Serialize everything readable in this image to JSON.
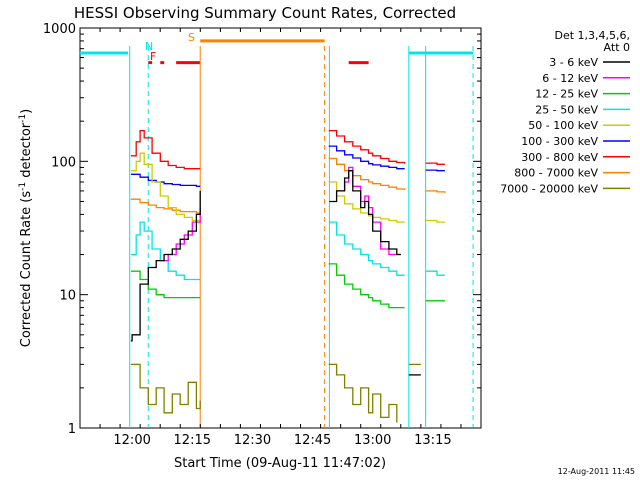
{
  "chart_data": {
    "type": "line",
    "title": "HESSI Observing Summary Count Rates, Corrected",
    "xlabel": "Start Time (09-Aug-11 11:47:02)",
    "ylabel_main": "Corrected Count Rate (s",
    "ylabel_sup1": "-1",
    "ylabel_mid": " detector",
    "ylabel_sup2": "-1",
    "ylabel_end": ")",
    "yscale": "log",
    "ylim": [
      1,
      1000
    ],
    "xlim": [
      "11:47",
      "13:27"
    ],
    "xticks": [
      "12:00",
      "12:15",
      "12:30",
      "12:45",
      "13:00",
      "13:15"
    ],
    "yticks": [
      "1",
      "10",
      "100",
      "1000"
    ],
    "grid": false,
    "legend_position": "right",
    "legend_title": "Det 1,3,4,5,6,",
    "legend_subtitle": "Att 0",
    "footer_date": "12-Aug-2011 11:45",
    "annotations": [
      "N",
      "F",
      "S"
    ],
    "series": [
      {
        "name": "3 - 6 keV",
        "color": "#000000",
        "segments": [
          [
            [
              11.995,
              4.5
            ],
            [
              12.0,
              5
            ],
            [
              12.033,
              12
            ],
            [
              12.067,
              16
            ],
            [
              12.1,
              18
            ],
            [
              12.133,
              20
            ],
            [
              12.167,
              22
            ],
            [
              12.2,
              26
            ],
            [
              12.233,
              30
            ],
            [
              12.267,
              40
            ],
            [
              12.283,
              60
            ]
          ],
          [
            [
              12.82,
              50
            ],
            [
              12.85,
              60
            ],
            [
              12.883,
              75
            ],
            [
              12.9,
              85
            ],
            [
              12.917,
              60
            ],
            [
              12.95,
              45
            ],
            [
              12.967,
              50
            ],
            [
              12.983,
              40
            ],
            [
              13.0,
              30
            ],
            [
              13.033,
              25
            ],
            [
              13.067,
              22
            ],
            [
              13.1,
              20
            ],
            [
              13.117,
              20
            ]
          ],
          [
            [
              13.15,
              2.5
            ],
            [
              13.2,
              2.5
            ]
          ]
        ]
      },
      {
        "name": "6 - 12 keV",
        "color": "#ff00ff",
        "segments": [
          [
            [
              12.117,
              18
            ],
            [
              12.15,
              20
            ],
            [
              12.183,
              24
            ],
            [
              12.217,
              28
            ],
            [
              12.25,
              35
            ],
            [
              12.283,
              45
            ]
          ],
          [
            [
              12.85,
              60
            ],
            [
              12.883,
              70
            ],
            [
              12.9,
              90
            ],
            [
              12.917,
              65
            ],
            [
              12.95,
              50
            ],
            [
              12.967,
              55
            ],
            [
              12.983,
              45
            ],
            [
              13.0,
              35
            ],
            [
              13.033,
              22
            ],
            [
              13.067,
              20
            ],
            [
              13.1,
              20
            ],
            [
              13.117,
              20
            ]
          ]
        ]
      },
      {
        "name": "12 - 25 keV",
        "color": "#00cc00",
        "segments": [
          [
            [
              11.995,
              15
            ],
            [
              12.033,
              13
            ],
            [
              12.067,
              11
            ],
            [
              12.1,
              10
            ],
            [
              12.133,
              9.5
            ],
            [
              12.167,
              9.5
            ],
            [
              12.2,
              9.5
            ],
            [
              12.233,
              9.5
            ],
            [
              12.267,
              9.5
            ],
            [
              12.283,
              9.5
            ]
          ],
          [
            [
              12.817,
              17
            ],
            [
              12.85,
              14
            ],
            [
              12.883,
              12
            ],
            [
              12.917,
              11
            ],
            [
              12.95,
              10
            ],
            [
              12.983,
              9.5
            ],
            [
              13.0,
              9
            ],
            [
              13.033,
              8.5
            ],
            [
              13.067,
              8
            ],
            [
              13.1,
              8
            ],
            [
              13.133,
              8
            ]
          ],
          [
            [
              13.22,
              9
            ],
            [
              13.267,
              9
            ],
            [
              13.3,
              9
            ]
          ]
        ]
      },
      {
        "name": "25 - 50 keV",
        "color": "#00e5e5",
        "segments": [
          [
            [
              11.995,
              20
            ],
            [
              12.017,
              28
            ],
            [
              12.033,
              35
            ],
            [
              12.05,
              30
            ],
            [
              12.083,
              22
            ],
            [
              12.117,
              18
            ],
            [
              12.15,
              15
            ],
            [
              12.183,
              14
            ],
            [
              12.217,
              13
            ],
            [
              12.25,
              13
            ],
            [
              12.283,
              13
            ]
          ],
          [
            [
              12.817,
              35
            ],
            [
              12.85,
              28
            ],
            [
              12.883,
              24
            ],
            [
              12.917,
              22
            ],
            [
              12.95,
              20
            ],
            [
              12.983,
              18
            ],
            [
              13.0,
              17
            ],
            [
              13.033,
              16
            ],
            [
              13.067,
              15
            ],
            [
              13.1,
              14
            ],
            [
              13.133,
              14
            ]
          ],
          [
            [
              13.22,
              15
            ],
            [
              13.267,
              14
            ],
            [
              13.3,
              14
            ]
          ]
        ]
      },
      {
        "name": "50 - 100 keV",
        "color": "#cccc00",
        "segments": [
          [
            [
              11.995,
              85
            ],
            [
              12.017,
              100
            ],
            [
              12.033,
              115
            ],
            [
              12.05,
              95
            ],
            [
              12.083,
              70
            ],
            [
              12.117,
              55
            ],
            [
              12.15,
              45
            ],
            [
              12.183,
              40
            ],
            [
              12.217,
              38
            ],
            [
              12.25,
              36
            ],
            [
              12.283,
              35
            ]
          ],
          [
            [
              12.817,
              70
            ],
            [
              12.85,
              55
            ],
            [
              12.883,
              48
            ],
            [
              12.917,
              44
            ],
            [
              12.95,
              41
            ],
            [
              12.983,
              39
            ],
            [
              13.0,
              38
            ],
            [
              13.033,
              37
            ],
            [
              13.067,
              36
            ],
            [
              13.1,
              35
            ],
            [
              13.133,
              35
            ]
          ],
          [
            [
              13.22,
              36
            ],
            [
              13.267,
              35
            ],
            [
              13.3,
              35
            ]
          ]
        ]
      },
      {
        "name": "100 - 300 keV",
        "color": "#0000ff",
        "segments": [
          [
            [
              11.995,
              80
            ],
            [
              12.033,
              76
            ],
            [
              12.067,
              72
            ],
            [
              12.1,
              70
            ],
            [
              12.133,
              68
            ],
            [
              12.167,
              67
            ],
            [
              12.2,
              66
            ],
            [
              12.233,
              66
            ],
            [
              12.267,
              65
            ],
            [
              12.283,
              65
            ]
          ],
          [
            [
              12.817,
              130
            ],
            [
              12.85,
              120
            ],
            [
              12.883,
              112
            ],
            [
              12.917,
              106
            ],
            [
              12.95,
              100
            ],
            [
              12.983,
              96
            ],
            [
              13.0,
              94
            ],
            [
              13.033,
              92
            ],
            [
              13.067,
              90
            ],
            [
              13.1,
              88
            ],
            [
              13.133,
              88
            ]
          ],
          [
            [
              13.22,
              86
            ],
            [
              13.267,
              85
            ],
            [
              13.3,
              85
            ]
          ]
        ]
      },
      {
        "name": "300 - 800 keV",
        "color": "#ff0000",
        "segments": [
          [
            [
              11.995,
              110
            ],
            [
              12.017,
              140
            ],
            [
              12.033,
              170
            ],
            [
              12.05,
              150
            ],
            [
              12.083,
              115
            ],
            [
              12.117,
              100
            ],
            [
              12.15,
              93
            ],
            [
              12.183,
              90
            ],
            [
              12.217,
              88
            ],
            [
              12.25,
              88
            ],
            [
              12.283,
              88
            ]
          ],
          [
            [
              12.817,
              170
            ],
            [
              12.85,
              155
            ],
            [
              12.883,
              140
            ],
            [
              12.917,
              130
            ],
            [
              12.95,
              122
            ],
            [
              12.983,
              115
            ],
            [
              13.0,
              110
            ],
            [
              13.033,
              105
            ],
            [
              13.067,
              100
            ],
            [
              13.1,
              98
            ],
            [
              13.133,
              96
            ]
          ],
          [
            [
              13.22,
              97
            ],
            [
              13.267,
              95
            ],
            [
              13.3,
              95
            ]
          ]
        ]
      },
      {
        "name": "800 - 7000 keV",
        "color": "#ff8000",
        "segments": [
          [
            [
              11.995,
              52
            ],
            [
              12.033,
              49
            ],
            [
              12.067,
              47
            ],
            [
              12.1,
              45
            ],
            [
              12.133,
              44
            ],
            [
              12.167,
              43
            ],
            [
              12.2,
              42
            ],
            [
              12.233,
              42
            ],
            [
              12.267,
              41
            ],
            [
              12.283,
              41
            ]
          ],
          [
            [
              12.817,
              105
            ],
            [
              12.85,
              95
            ],
            [
              12.883,
              85
            ],
            [
              12.917,
              78
            ],
            [
              12.95,
              73
            ],
            [
              12.983,
              70
            ],
            [
              13.0,
              68
            ],
            [
              13.033,
              66
            ],
            [
              13.067,
              64
            ],
            [
              13.1,
              62
            ],
            [
              13.133,
              61
            ]
          ],
          [
            [
              13.22,
              60
            ],
            [
              13.267,
              59
            ],
            [
              13.3,
              58
            ]
          ]
        ]
      },
      {
        "name": "7000 - 20000 keV",
        "color": "#808000",
        "segments": [
          [
            [
              11.995,
              3
            ],
            [
              12.033,
              2
            ],
            [
              12.067,
              1.5
            ],
            [
              12.1,
              2
            ],
            [
              12.133,
              1.3
            ],
            [
              12.167,
              1.8
            ],
            [
              12.2,
              1.5
            ],
            [
              12.233,
              2.2
            ],
            [
              12.267,
              1.4
            ],
            [
              12.283,
              1.6
            ]
          ],
          [
            [
              12.817,
              3
            ],
            [
              12.85,
              2.5
            ],
            [
              12.883,
              2
            ],
            [
              12.917,
              1.5
            ],
            [
              12.95,
              2
            ],
            [
              12.983,
              1.3
            ],
            [
              13.0,
              1.8
            ],
            [
              13.033,
              1.2
            ],
            [
              13.067,
              1.5
            ],
            [
              13.1,
              1.1
            ]
          ],
          [
            [
              13.15,
              3
            ],
            [
              13.2,
              3
            ]
          ]
        ]
      }
    ],
    "state_lines": [
      {
        "name": "N",
        "color": "#00e5e5",
        "style": "solid",
        "points": [
          [
            11.783,
            650
          ],
          [
            11.983,
            650
          ]
        ]
      },
      {
        "name": "N",
        "color": "#00e5e5",
        "style": "solid",
        "points": [
          [
            13.15,
            650
          ],
          [
            13.417,
            650
          ]
        ]
      },
      {
        "name": "F",
        "color": "#ff0000",
        "style": "solid",
        "points": [
          [
            12.067,
            550
          ],
          [
            12.083,
            550
          ]
        ]
      },
      {
        "name": "F",
        "color": "#ff0000",
        "style": "solid",
        "points": [
          [
            12.117,
            550
          ],
          [
            12.133,
            550
          ]
        ]
      },
      {
        "name": "F",
        "color": "#ff0000",
        "style": "solid",
        "points": [
          [
            12.183,
            550
          ],
          [
            12.283,
            550
          ]
        ]
      },
      {
        "name": "F",
        "color": "#ff0000",
        "style": "solid",
        "points": [
          [
            12.9,
            550
          ],
          [
            12.983,
            550
          ]
        ]
      },
      {
        "name": "S",
        "color": "#ff8000",
        "style": "solid",
        "points": [
          [
            12.283,
            800
          ],
          [
            12.8,
            800
          ]
        ]
      }
    ],
    "gap_markers": [
      {
        "color": "#00e5e5",
        "style": "solid",
        "x": 11.99
      },
      {
        "color": "#00e5e5",
        "style": "dashed",
        "x": 12.067
      },
      {
        "color": "#ff8000",
        "style": "solid",
        "x": 12.283
      },
      {
        "color": "#ff8000",
        "style": "dashed",
        "x": 12.8
      },
      {
        "color": "#00e5e5",
        "style": "solid",
        "x": 12.82
      },
      {
        "color": "#00e5e5",
        "style": "solid",
        "x": 13.15
      },
      {
        "color": "#00e5e5",
        "style": "solid",
        "x": 13.22
      },
      {
        "color": "#00e5e5",
        "style": "dashed",
        "x": 13.417
      }
    ]
  }
}
